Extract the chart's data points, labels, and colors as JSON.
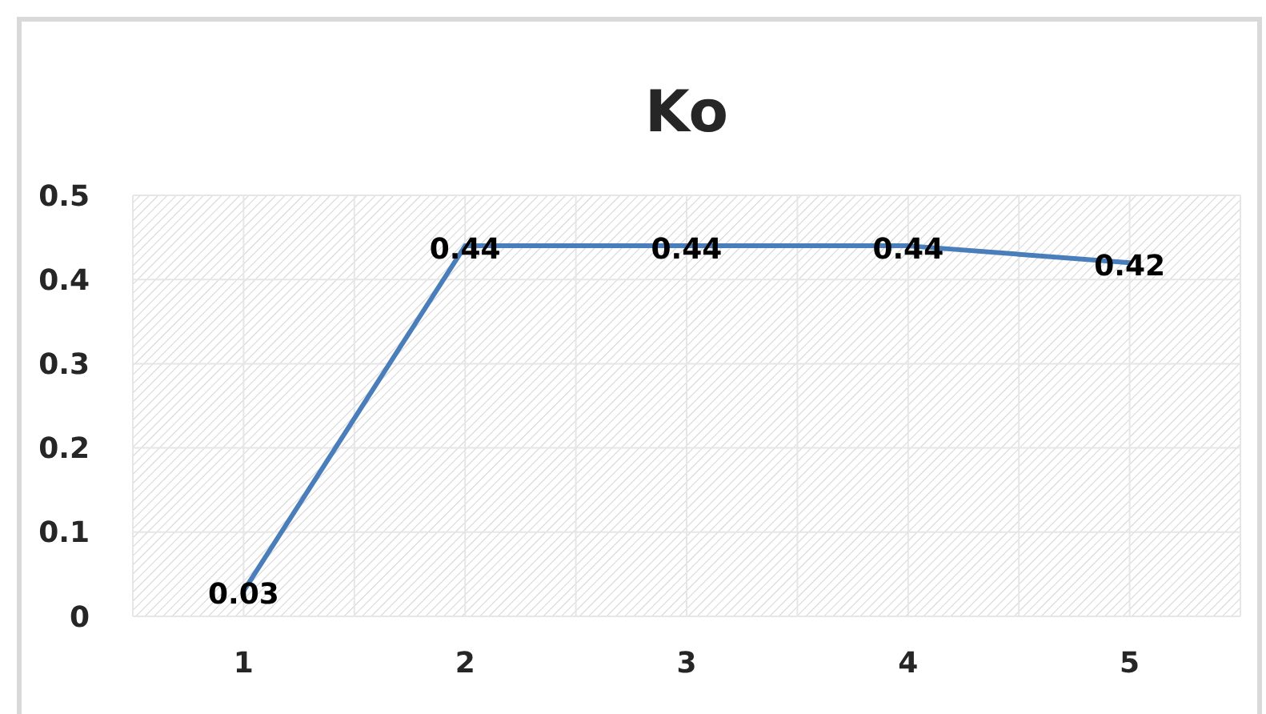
{
  "chart_data": {
    "type": "line",
    "title": "Ko",
    "categories": [
      "1",
      "2",
      "3",
      "4",
      "5"
    ],
    "series": [
      {
        "color": "#4a7ebb",
        "values": [
          0.03,
          0.44,
          0.44,
          0.44,
          0.42
        ]
      }
    ],
    "ylim": [
      0,
      0.5
    ],
    "yticks": [
      0,
      0.1,
      0.2,
      0.3,
      0.4,
      0.5
    ],
    "grid": true,
    "data_labels": true,
    "marker": "none",
    "line_style": "solid"
  }
}
